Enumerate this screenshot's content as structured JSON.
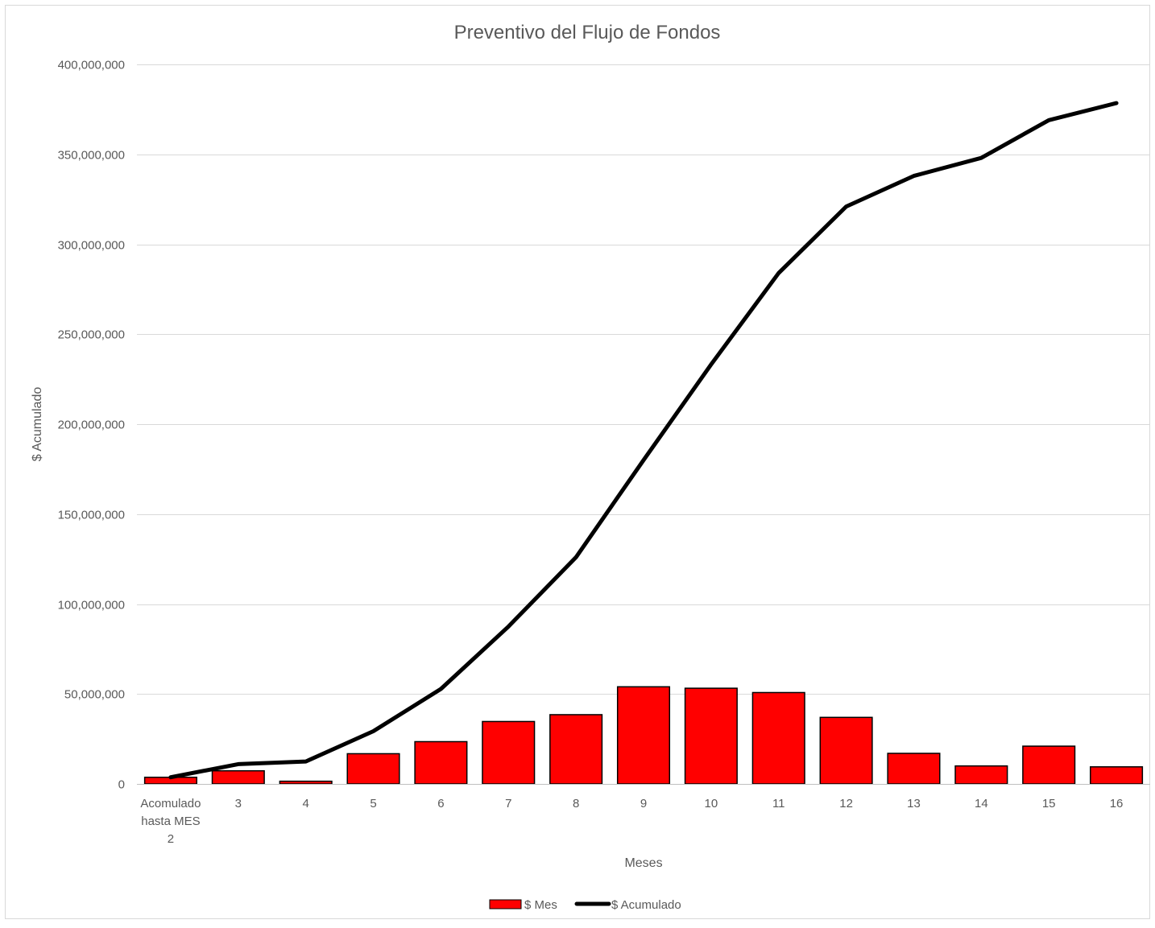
{
  "chart_data": {
    "type": "bar",
    "title": "Preventivo del Flujo de Fondos",
    "xlabel": "Meses",
    "ylabel": "$ Acumulado",
    "categories": [
      [
        "Acomulado",
        "hasta MES",
        "2"
      ],
      [
        "3"
      ],
      [
        "4"
      ],
      [
        "5"
      ],
      [
        "6"
      ],
      [
        "7"
      ],
      [
        "8"
      ],
      [
        "9"
      ],
      [
        "10"
      ],
      [
        "11"
      ],
      [
        "12"
      ],
      [
        "13"
      ],
      [
        "14"
      ],
      [
        "15"
      ],
      [
        "16"
      ]
    ],
    "ylim": [
      0,
      400000000
    ],
    "yticks": [
      0,
      50000000,
      100000000,
      150000000,
      200000000,
      250000000,
      300000000,
      350000000,
      400000000
    ],
    "ytick_labels": [
      "0",
      "50,000,000",
      "100,000,000",
      "150,000,000",
      "200,000,000",
      "250,000,000",
      "300,000,000",
      "350,000,000",
      "400,000,000"
    ],
    "grid": true,
    "legend_position": "bottom",
    "series": [
      {
        "name": "$ Mes",
        "type": "bar",
        "color": "#ff0000",
        "values": [
          3700000,
          7300000,
          1500000,
          16800000,
          23500000,
          34700000,
          38500000,
          54000000,
          53200000,
          50800000,
          37000000,
          17000000,
          10000000,
          21000000,
          9500000
        ]
      },
      {
        "name": "$ Acumulado",
        "type": "line",
        "color": "#000000",
        "values": [
          3700000,
          11000000,
          12500000,
          29300000,
          52800000,
          87500000,
          126000000,
          180000000,
          233200000,
          284000000,
          321000000,
          338000000,
          348000000,
          369000000,
          378500000
        ]
      }
    ]
  }
}
